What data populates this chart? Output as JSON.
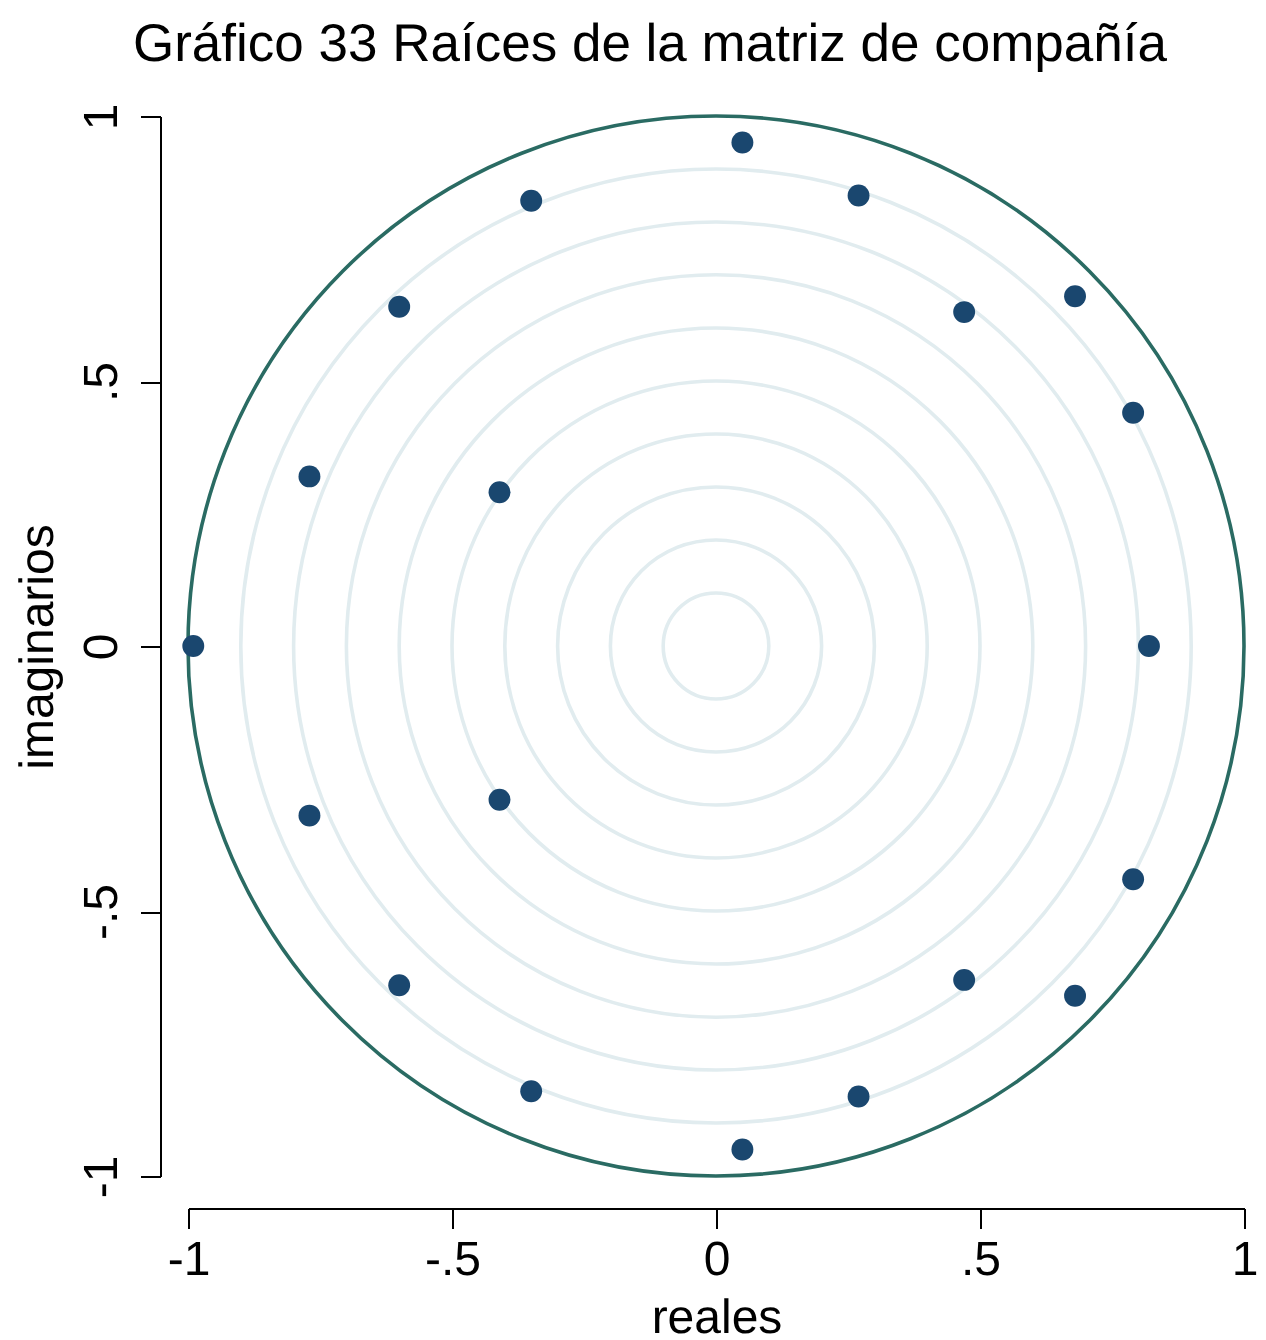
{
  "chart_data": {
    "type": "scatter",
    "title": "Gráfico  33 Raíces de la matriz de compañía",
    "xlabel": "reales",
    "ylabel": "imaginarios",
    "xlim": [
      -1,
      1
    ],
    "ylim": [
      -1,
      1
    ],
    "xticks": [
      -1,
      {
        "value": -0.5,
        "label": "-.5"
      },
      0,
      {
        "value": 0.5,
        "label": ".5"
      },
      1
    ],
    "yticks": [
      -1,
      {
        "value": -0.5,
        "label": "-.5"
      },
      0,
      {
        "value": 0.5,
        "label": ".5"
      },
      1
    ],
    "marker": "circle",
    "color": "#1a476f",
    "x": [
      0.05,
      0.27,
      0.47,
      0.68,
      0.79,
      0.82,
      0.79,
      0.68,
      0.47,
      0.27,
      0.05,
      -0.35,
      -0.6,
      -0.77,
      -0.41,
      -0.99,
      -0.77,
      -0.41,
      -0.6,
      -0.35
    ],
    "values": [
      0.95,
      0.85,
      0.63,
      0.66,
      0.44,
      0,
      -0.44,
      -0.66,
      -0.63,
      -0.85,
      -0.95,
      -0.84,
      -0.64,
      -0.32,
      -0.29,
      0,
      0.32,
      0.29,
      0.64,
      0.84
    ]
  }
}
